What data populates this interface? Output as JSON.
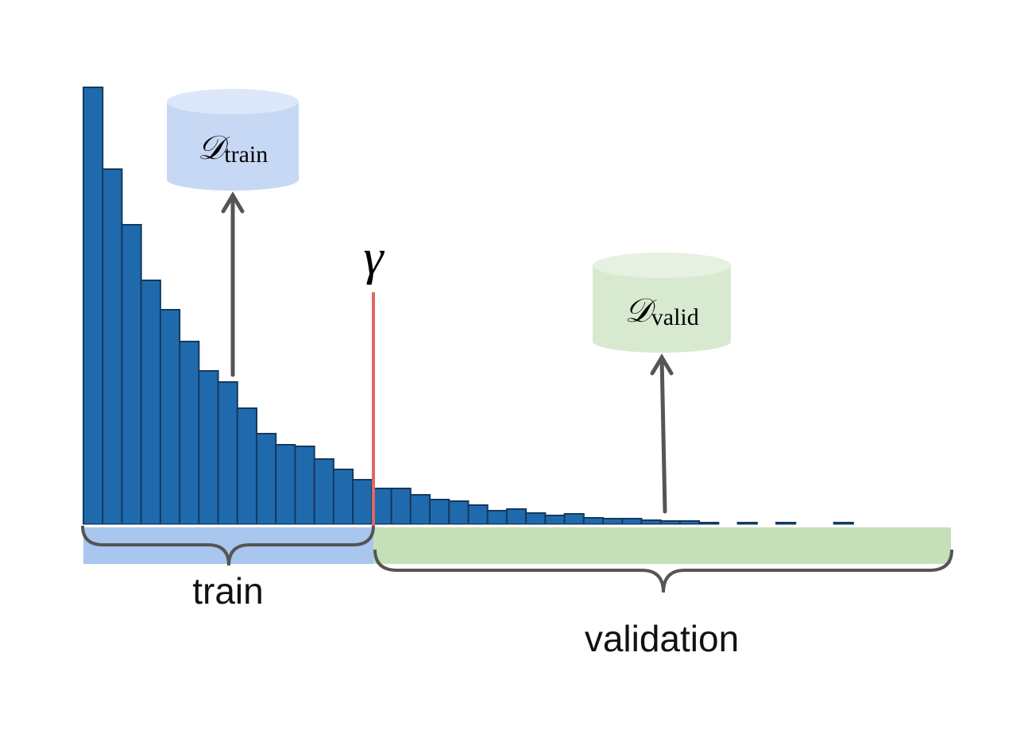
{
  "histogram": {
    "values": [
      550,
      447,
      377,
      307,
      270,
      230,
      193,
      179,
      146,
      114,
      100,
      98,
      82,
      69,
      56,
      45,
      45,
      37,
      31,
      29,
      24,
      17,
      19,
      14,
      11,
      13,
      8,
      7,
      7,
      5,
      4,
      4,
      2,
      0,
      2,
      0,
      2,
      0,
      0,
      2,
      0,
      0,
      0,
      0,
      0
    ],
    "ylim": [
      0,
      550
    ],
    "color": "#1f6aad"
  },
  "threshold": {
    "label": "γ"
  },
  "stores": [
    {
      "symbol": "𝒟",
      "subscript": "train"
    },
    {
      "symbol": "𝒟",
      "subscript": "valid"
    }
  ],
  "regions": [
    {
      "label": "train"
    },
    {
      "label": "validation"
    }
  ]
}
